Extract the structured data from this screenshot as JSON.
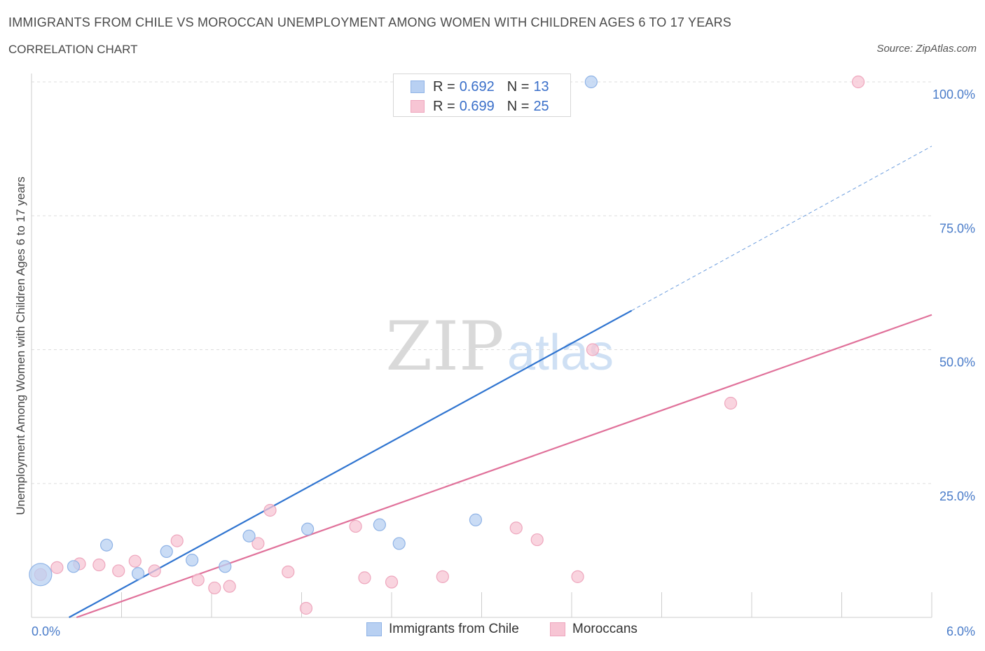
{
  "header": {
    "title": "IMMIGRANTS FROM CHILE VS MOROCCAN UNEMPLOYMENT AMONG WOMEN WITH CHILDREN AGES 6 TO 17 YEARS",
    "subtitle": "CORRELATION CHART",
    "source": "Source: ZipAtlas.com"
  },
  "watermark": {
    "zip": "ZIP",
    "atlas": "atlas"
  },
  "colors": {
    "chile_fill": "#b8d0f2",
    "chile_stroke": "#8fb3e6",
    "chile_line": "#2f74d0",
    "moroccan_fill": "#f7c5d4",
    "moroccan_stroke": "#eea6bd",
    "moroccan_line": "#e0719a",
    "axis_label": "#4a7cc9",
    "grid": "#dddddd"
  },
  "legend_stats": [
    {
      "r_label": "R =",
      "r_value": "0.692",
      "n_label": "N =",
      "n_value": "13"
    },
    {
      "r_label": "R =",
      "r_value": "0.699",
      "n_label": "N =",
      "n_value": "25"
    }
  ],
  "chart_data": {
    "type": "scatter",
    "title": "IMMIGRANTS FROM CHILE VS MOROCCAN UNEMPLOYMENT AMONG WOMEN WITH CHILDREN AGES 6 TO 17 YEARS",
    "ylabel": "Unemployment Among Women with Children Ages 6 to 17 years",
    "xlabel": "",
    "xlim": [
      0,
      6
    ],
    "ylim": [
      0,
      100
    ],
    "x_tick_labels": [
      {
        "value": 0,
        "label": "0.0%"
      },
      {
        "value": 6,
        "label": "6.0%"
      }
    ],
    "y_tick_labels": [
      {
        "value": 25,
        "label": "25.0%"
      },
      {
        "value": 50,
        "label": "50.0%"
      },
      {
        "value": 75,
        "label": "75.0%"
      },
      {
        "value": 100,
        "label": "100.0%"
      }
    ],
    "grid": "horizontal dashed",
    "legend_placement": "bottom-center",
    "series": [
      {
        "name": "Immigrants from Chile",
        "r": 0.692,
        "n": 13,
        "points": [
          {
            "x": 0.06,
            "y": 8.0,
            "big": true
          },
          {
            "x": 0.28,
            "y": 9.5
          },
          {
            "x": 0.5,
            "y": 13.5
          },
          {
            "x": 0.71,
            "y": 8.2
          },
          {
            "x": 0.9,
            "y": 12.3
          },
          {
            "x": 1.07,
            "y": 10.7
          },
          {
            "x": 1.29,
            "y": 9.5
          },
          {
            "x": 1.45,
            "y": 15.2
          },
          {
            "x": 1.84,
            "y": 16.5
          },
          {
            "x": 2.32,
            "y": 17.3
          },
          {
            "x": 2.45,
            "y": 13.8
          },
          {
            "x": 2.96,
            "y": 18.2
          },
          {
            "x": 3.73,
            "y": 100.0
          }
        ],
        "trend": {
          "x0": 0.25,
          "y0": 0,
          "x1": 4.0,
          "y1": 57.3,
          "dash_to_x": 6.0,
          "dash_to_y": 88.0
        }
      },
      {
        "name": "Moroccans",
        "r": 0.699,
        "n": 25,
        "points": [
          {
            "x": 0.06,
            "y": 8.0
          },
          {
            "x": 0.17,
            "y": 9.3
          },
          {
            "x": 0.32,
            "y": 10.0
          },
          {
            "x": 0.45,
            "y": 9.8
          },
          {
            "x": 0.58,
            "y": 8.7
          },
          {
            "x": 0.69,
            "y": 10.5
          },
          {
            "x": 0.82,
            "y": 8.7
          },
          {
            "x": 0.97,
            "y": 14.3
          },
          {
            "x": 1.11,
            "y": 7.0
          },
          {
            "x": 1.22,
            "y": 5.5
          },
          {
            "x": 1.32,
            "y": 5.8
          },
          {
            "x": 1.51,
            "y": 13.8
          },
          {
            "x": 1.59,
            "y": 20.0
          },
          {
            "x": 1.71,
            "y": 8.5
          },
          {
            "x": 1.83,
            "y": 1.7
          },
          {
            "x": 2.16,
            "y": 17.0
          },
          {
            "x": 2.22,
            "y": 7.4
          },
          {
            "x": 2.4,
            "y": 6.6
          },
          {
            "x": 2.74,
            "y": 7.6
          },
          {
            "x": 3.23,
            "y": 16.7
          },
          {
            "x": 3.37,
            "y": 14.5
          },
          {
            "x": 3.64,
            "y": 7.6
          },
          {
            "x": 3.74,
            "y": 50.0
          },
          {
            "x": 4.66,
            "y": 40.0
          },
          {
            "x": 5.51,
            "y": 100.0
          }
        ],
        "trend": {
          "x0": 0.3,
          "y0": 0,
          "x1": 6.0,
          "y1": 56.5
        }
      }
    ]
  }
}
